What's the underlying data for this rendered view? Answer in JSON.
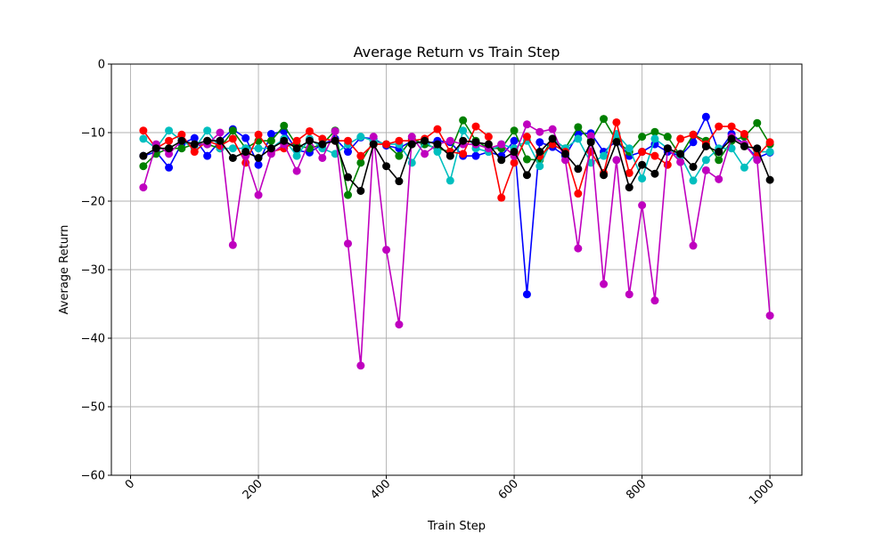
{
  "chart_data": {
    "type": "line",
    "title": "Average Return vs Train Step",
    "xlabel": "Train Step",
    "ylabel": "Average Return",
    "xlim": [
      -30,
      1050
    ],
    "ylim": [
      -60,
      0
    ],
    "xticks": [
      0,
      200,
      400,
      600,
      800,
      1000
    ],
    "yticks": [
      0,
      -10,
      -20,
      -30,
      -40,
      -50,
      -60
    ],
    "xtick_rotation": 45,
    "grid": true,
    "legend": "none",
    "x": [
      20,
      40,
      60,
      80,
      100,
      120,
      140,
      160,
      180,
      200,
      220,
      240,
      260,
      280,
      300,
      320,
      340,
      360,
      380,
      400,
      420,
      440,
      460,
      480,
      500,
      520,
      540,
      560,
      580,
      600,
      620,
      640,
      660,
      680,
      700,
      720,
      740,
      760,
      780,
      800,
      820,
      840,
      860,
      880,
      900,
      920,
      940,
      960,
      980,
      1000
    ],
    "series": [
      {
        "color": "#0000ff",
        "values": [
          -13.4,
          -12.8,
          -15.1,
          -11.6,
          -10.8,
          -13.4,
          -11.2,
          -9.5,
          -10.8,
          -14.7,
          -10.2,
          -9.8,
          -12.6,
          -12.9,
          -11.7,
          -10.9,
          -12.8,
          -10.7,
          -10.9,
          -11.9,
          -12.3,
          -11.2,
          -11.7,
          -11.2,
          -11.4,
          -13.4,
          -13.4,
          -12.8,
          -13.4,
          -11.2,
          -33.6,
          -11.4,
          -12.1,
          -13.4,
          -10.2,
          -10.1,
          -12.8,
          -11.2,
          -13.4,
          -12.8,
          -11.7,
          -12.8,
          -13.4,
          -11.4,
          -7.7,
          -12.8,
          -10.2,
          -11.7,
          -13.7,
          -12.9
        ]
      },
      {
        "color": "#008000",
        "values": [
          -14.9,
          -13.1,
          -12.3,
          -12.3,
          -11.7,
          -11.7,
          -12.3,
          -9.7,
          -12.3,
          -11.2,
          -11.2,
          -9.0,
          -11.9,
          -12.3,
          -11.7,
          -9.7,
          -19.1,
          -14.4,
          -11.2,
          -11.7,
          -13.4,
          -10.9,
          -11.7,
          -12.3,
          -12.8,
          -8.2,
          -11.2,
          -12.3,
          -12.3,
          -9.7,
          -13.9,
          -14.0,
          -10.9,
          -12.3,
          -9.2,
          -11.2,
          -8.0,
          -11.2,
          -12.8,
          -10.6,
          -9.9,
          -10.6,
          -13.4,
          -10.3,
          -11.2,
          -14.0,
          -11.2,
          -10.6,
          -8.6,
          -11.7
        ]
      },
      {
        "color": "#00bfbf",
        "values": [
          -10.9,
          -12.3,
          -9.7,
          -11.2,
          -12.3,
          -9.7,
          -12.3,
          -12.3,
          -12.3,
          -12.3,
          -12.3,
          -10.9,
          -13.4,
          -10.9,
          -12.3,
          -13.1,
          -11.7,
          -10.6,
          -11.2,
          -11.7,
          -11.7,
          -14.4,
          -11.2,
          -12.8,
          -17.0,
          -9.7,
          -12.3,
          -12.8,
          -11.7,
          -12.3,
          -11.2,
          -14.9,
          -10.9,
          -12.3,
          -10.9,
          -14.4,
          -13.4,
          -10.2,
          -12.3,
          -16.7,
          -10.9,
          -12.3,
          -13.4,
          -17.0,
          -14.0,
          -12.3,
          -12.3,
          -15.1,
          -12.8,
          -12.8
        ]
      },
      {
        "color": "#ff0000",
        "values": [
          -9.7,
          -12.3,
          -11.2,
          -10.3,
          -12.8,
          -11.2,
          -11.9,
          -10.9,
          -14.4,
          -10.3,
          -12.8,
          -12.3,
          -11.2,
          -9.8,
          -10.9,
          -11.2,
          -11.2,
          -13.4,
          -11.7,
          -11.7,
          -11.2,
          -11.2,
          -10.9,
          -9.5,
          -12.8,
          -13.1,
          -9.1,
          -10.6,
          -19.5,
          -14.4,
          -10.6,
          -13.4,
          -11.7,
          -12.8,
          -18.9,
          -12.8,
          -15.9,
          -8.5,
          -15.9,
          -12.8,
          -13.4,
          -14.7,
          -10.9,
          -10.3,
          -11.7,
          -9.1,
          -9.1,
          -10.2,
          -13.4,
          -11.4
        ]
      },
      {
        "color": "#bf00bf",
        "values": [
          -18.0,
          -11.7,
          -13.1,
          -11.2,
          -11.7,
          -11.7,
          -10.0,
          -26.4,
          -13.4,
          -19.1,
          -13.1,
          -11.7,
          -15.6,
          -11.2,
          -13.7,
          -9.8,
          -26.2,
          -44.0,
          -10.6,
          -27.1,
          -38.0,
          -10.6,
          -13.1,
          -11.7,
          -11.2,
          -11.7,
          -11.7,
          -12.3,
          -11.7,
          -13.4,
          -8.8,
          -9.9,
          -9.5,
          -14.0,
          -26.9,
          -10.5,
          -32.1,
          -14.0,
          -33.6,
          -20.6,
          -34.5,
          -12.3,
          -14.3,
          -26.5,
          -15.5,
          -16.8,
          -10.6,
          -11.7,
          -14.0,
          -36.7
        ]
      },
      {
        "color": "#000000",
        "values": [
          -13.4,
          -12.3,
          -12.3,
          -11.2,
          -11.7,
          -11.2,
          -11.2,
          -13.7,
          -12.8,
          -13.7,
          -12.3,
          -11.2,
          -12.3,
          -11.2,
          -11.7,
          -11.2,
          -16.5,
          -18.5,
          -11.7,
          -14.9,
          -17.1,
          -11.7,
          -11.2,
          -11.7,
          -13.4,
          -11.2,
          -11.4,
          -11.7,
          -14.0,
          -12.8,
          -16.2,
          -12.8,
          -10.9,
          -13.1,
          -15.3,
          -11.4,
          -16.2,
          -11.4,
          -18.0,
          -14.7,
          -16.0,
          -12.3,
          -13.1,
          -15.0,
          -12.0,
          -12.8,
          -10.9,
          -12.0,
          -12.3,
          -16.9
        ]
      }
    ]
  }
}
